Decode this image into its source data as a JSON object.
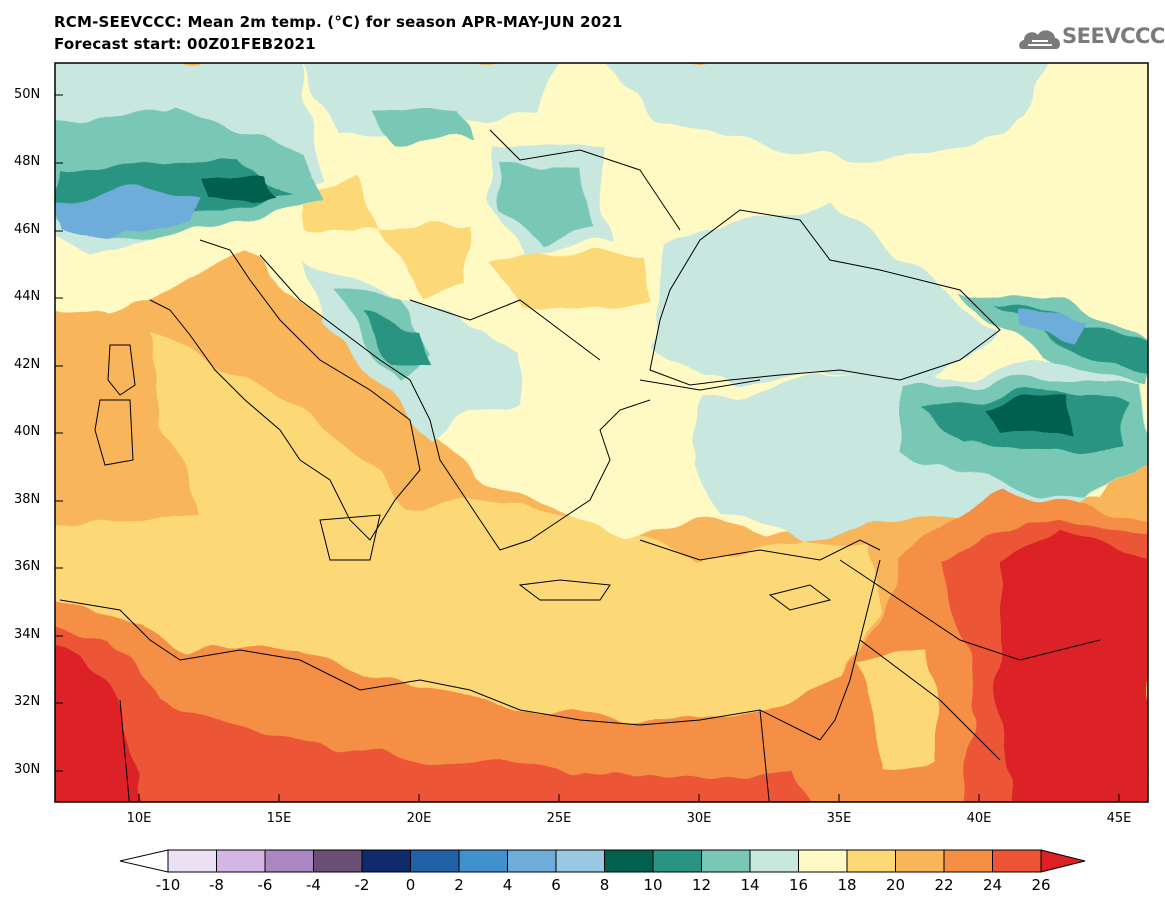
{
  "header": {
    "title_line1": "RCM-SEEVCCC: Mean 2m temp. (°C) for season APR-MAY-JUN 2021",
    "title_line2": "Forecast start: 00Z01FEB2021",
    "logo_text": "SEEVCCC"
  },
  "map": {
    "lat_labels": [
      "50N",
      "48N",
      "46N",
      "44N",
      "42N",
      "40N",
      "38N",
      "36N",
      "34N",
      "32N",
      "30N"
    ],
    "lon_labels": [
      "10E",
      "15E",
      "20E",
      "25E",
      "30E",
      "35E",
      "40E",
      "45E"
    ],
    "extent": {
      "lon_min": 7,
      "lon_max": 46,
      "lat_min": 29,
      "lat_max": 51
    },
    "palette": {
      "-10": "#ebe0f4",
      "-8": "#d4b6e6",
      "-6": "#aa86c2",
      "-4": "#6a4e73",
      "-2": "#0f2b6d",
      "0": "#2161a8",
      "2": "#4191cf",
      "4": "#6eadda",
      "6": "#9ac8e3",
      "8": "#00614e",
      "10": "#2a9482",
      "12": "#79c8b6",
      "14": "#c7e7df",
      "16": "#fffac3",
      "18": "#fcd877",
      "20": "#f8b55a",
      "22": "#f48f44",
      "24": "#ec5435",
      "26": "#dc2025"
    }
  },
  "colorbar": {
    "ticks": [
      "-10",
      "-8",
      "-6",
      "-4",
      "-2",
      "0",
      "2",
      "4",
      "6",
      "8",
      "10",
      "12",
      "14",
      "16",
      "18",
      "20",
      "22",
      "24",
      "26"
    ],
    "colors": [
      "#ebe0f4",
      "#d4b6e6",
      "#aa86c2",
      "#6a4e73",
      "#0f2b6d",
      "#2161a8",
      "#4191cf",
      "#6eadda",
      "#9ac8e3",
      "#00614e",
      "#2a9482",
      "#79c8b6",
      "#c7e7df",
      "#fffac3",
      "#fcd877",
      "#f8b55a",
      "#f48f44",
      "#ec5435"
    ],
    "under_color": "#ffffff",
    "over_color": "#dc2025"
  }
}
